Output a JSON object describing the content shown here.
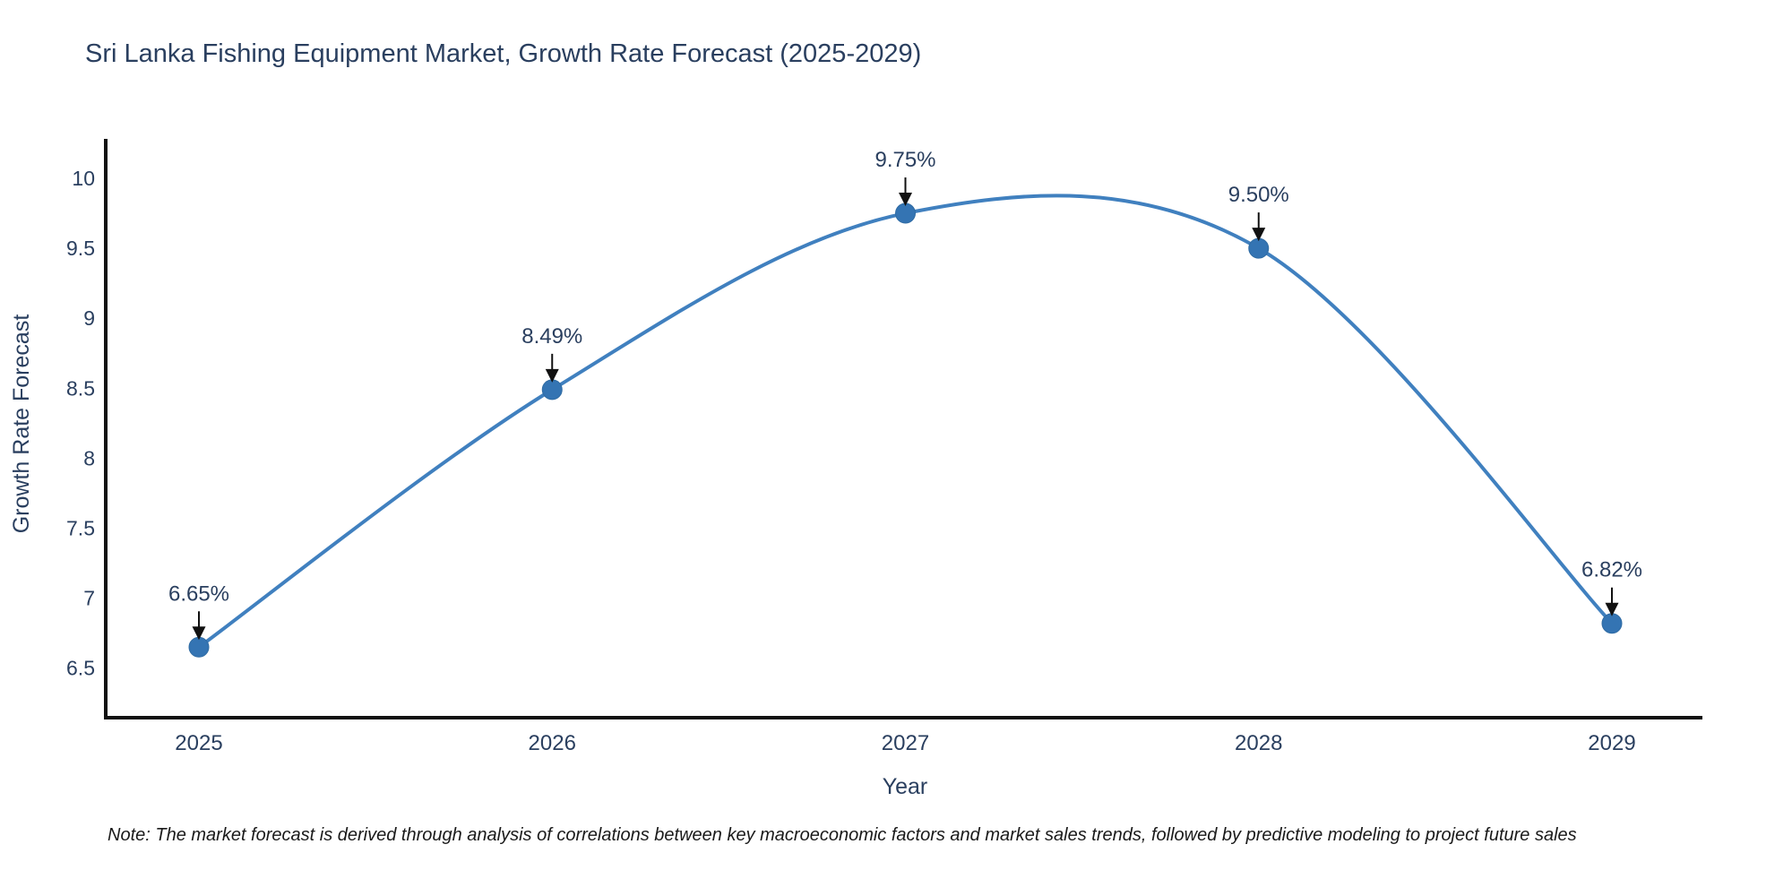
{
  "title": "Sri Lanka Fishing Equipment Market, Growth Rate Forecast (2025-2029)",
  "note": "Note: The market forecast is derived through analysis of correlations between key macroeconomic factors and market sales trends, followed by predictive modeling to project future sales",
  "colors": {
    "line": "#4080bf",
    "marker_fill": "#3474b3",
    "marker_stroke": "#2f6ba3",
    "axis_line": "#111111",
    "text": "#2a3f5f",
    "annotation_arrow": "#111111",
    "note_text": "#1a1a1a",
    "background": "#ffffff"
  },
  "chart_data": {
    "type": "line",
    "title": "Sri Lanka Fishing Equipment Market, Growth Rate Forecast (2025-2029)",
    "xlabel": "Year",
    "ylabel": "Growth Rate Forecast",
    "categories": [
      "2025",
      "2026",
      "2027",
      "2028",
      "2029"
    ],
    "values": [
      6.65,
      8.49,
      9.75,
      9.5,
      6.82
    ],
    "point_labels": [
      "6.65%",
      "8.49%",
      "9.75%",
      "9.50%",
      "6.82%"
    ],
    "y_ticks": [
      6.5,
      7,
      7.5,
      8,
      8.5,
      9,
      9.5,
      10
    ],
    "ylim": [
      6.1,
      10.3
    ],
    "line_shape": "spline",
    "grid": false,
    "legend": "none",
    "annotations": "down-arrow to each point"
  }
}
